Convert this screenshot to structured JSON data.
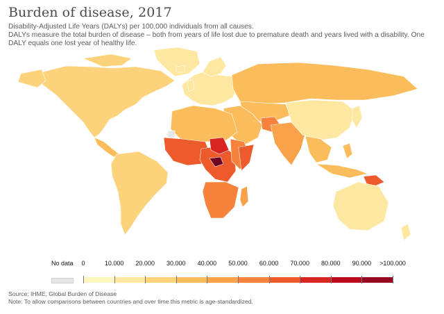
{
  "title": "Burden of disease, 2017",
  "subtitle_line1": "Disability-Adjusted Life Years (DALYs) per 100,000 individuals from all causes.",
  "subtitle_line2": "DALYs measure the total burden of disease – both from years of life lost due to premature death and years lived with a disability. One DALY equals one lost year of healthy life.",
  "legend": {
    "no_data_label": "No data",
    "no_data_color": "#e6e6e6",
    "labels": [
      "0",
      "10.000",
      "20.000",
      "30.000",
      "40.000",
      "50.000",
      "60.000",
      "70.000",
      "80.000",
      "90.000",
      ">100.000"
    ],
    "colors": [
      "#fef5c1",
      "#fde7a1",
      "#fcd27a",
      "#fbbd5c",
      "#f9a24a",
      "#f6823c",
      "#ed5a2c",
      "#d8251f",
      "#b80c1d",
      "#95061f",
      "#6d0321"
    ]
  },
  "footer": {
    "source": "Source: IHME, Global Burden of Disease",
    "note": "Note: To allow comparisons between countries and over time this metric is age-standardized."
  }
}
